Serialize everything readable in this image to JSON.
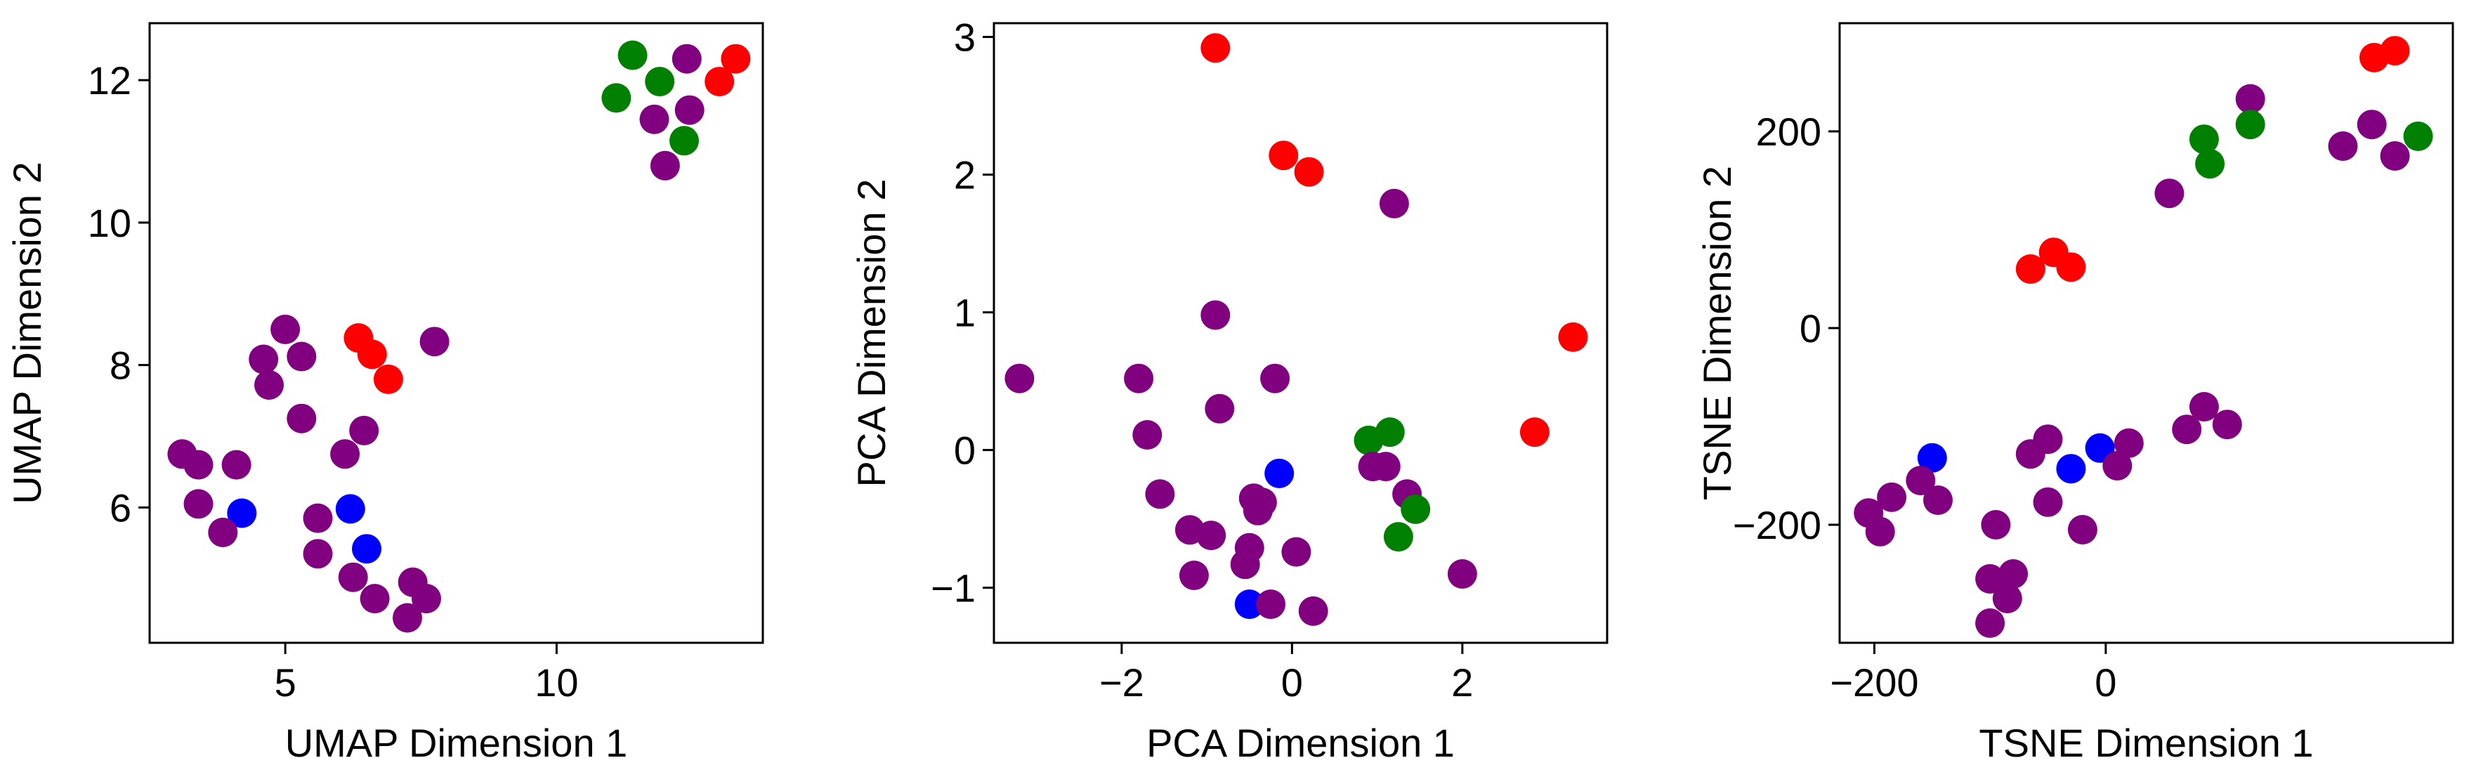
{
  "colors": {
    "purple": "#800080",
    "red": "#ff0000",
    "green": "#008000",
    "blue": "#0000ff"
  },
  "chart_data": [
    {
      "type": "scatter",
      "xlabel": "UMAP Dimension 1",
      "ylabel": "UMAP Dimension 2",
      "xlim": [
        2.5,
        13.8
      ],
      "ylim": [
        4.1,
        12.8
      ],
      "xticks": [
        5,
        10
      ],
      "yticks": [
        6,
        8,
        10,
        12
      ],
      "xtick_labels": [
        "5",
        "10"
      ],
      "ytick_labels": [
        "6",
        "8",
        "10",
        "12"
      ],
      "grid": false,
      "points": [
        {
          "x": 11.4,
          "y": 12.35,
          "color": "green"
        },
        {
          "x": 12.4,
          "y": 12.3,
          "color": "purple"
        },
        {
          "x": 13.3,
          "y": 12.3,
          "color": "red"
        },
        {
          "x": 11.9,
          "y": 11.98,
          "color": "green"
        },
        {
          "x": 13.0,
          "y": 11.98,
          "color": "red"
        },
        {
          "x": 11.1,
          "y": 11.75,
          "color": "green"
        },
        {
          "x": 12.45,
          "y": 11.58,
          "color": "purple"
        },
        {
          "x": 11.8,
          "y": 11.45,
          "color": "purple"
        },
        {
          "x": 12.35,
          "y": 11.15,
          "color": "green"
        },
        {
          "x": 12.0,
          "y": 10.8,
          "color": "purple"
        },
        {
          "x": 5.0,
          "y": 8.5,
          "color": "purple"
        },
        {
          "x": 6.35,
          "y": 8.38,
          "color": "red"
        },
        {
          "x": 7.75,
          "y": 8.33,
          "color": "purple"
        },
        {
          "x": 6.6,
          "y": 8.15,
          "color": "red"
        },
        {
          "x": 5.3,
          "y": 8.12,
          "color": "purple"
        },
        {
          "x": 4.6,
          "y": 8.08,
          "color": "purple"
        },
        {
          "x": 6.9,
          "y": 7.8,
          "color": "red"
        },
        {
          "x": 4.7,
          "y": 7.72,
          "color": "purple"
        },
        {
          "x": 5.3,
          "y": 7.25,
          "color": "purple"
        },
        {
          "x": 6.45,
          "y": 7.08,
          "color": "purple"
        },
        {
          "x": 3.1,
          "y": 6.75,
          "color": "purple"
        },
        {
          "x": 6.1,
          "y": 6.75,
          "color": "purple"
        },
        {
          "x": 3.4,
          "y": 6.6,
          "color": "purple"
        },
        {
          "x": 4.1,
          "y": 6.6,
          "color": "purple"
        },
        {
          "x": 3.4,
          "y": 6.05,
          "color": "purple"
        },
        {
          "x": 6.2,
          "y": 5.98,
          "color": "blue"
        },
        {
          "x": 4.2,
          "y": 5.92,
          "color": "blue"
        },
        {
          "x": 5.6,
          "y": 5.85,
          "color": "purple"
        },
        {
          "x": 3.85,
          "y": 5.65,
          "color": "purple"
        },
        {
          "x": 6.5,
          "y": 5.42,
          "color": "blue"
        },
        {
          "x": 5.6,
          "y": 5.35,
          "color": "purple"
        },
        {
          "x": 6.25,
          "y": 5.02,
          "color": "purple"
        },
        {
          "x": 7.35,
          "y": 4.95,
          "color": "purple"
        },
        {
          "x": 6.65,
          "y": 4.72,
          "color": "purple"
        },
        {
          "x": 7.6,
          "y": 4.72,
          "color": "purple"
        },
        {
          "x": 7.25,
          "y": 4.45,
          "color": "purple"
        }
      ]
    },
    {
      "type": "scatter",
      "xlabel": "PCA Dimension 1",
      "ylabel": "PCA Dimension 2",
      "xlim": [
        -3.5,
        3.7
      ],
      "ylim": [
        -1.4,
        3.1
      ],
      "xticks": [
        -2,
        0,
        2
      ],
      "yticks": [
        -1,
        0,
        1,
        2,
        3
      ],
      "xtick_labels": [
        "−2",
        "0",
        "2"
      ],
      "ytick_labels": [
        "−1",
        "0",
        "1",
        "2",
        "3"
      ],
      "grid": false,
      "points": [
        {
          "x": -0.9,
          "y": 2.92,
          "color": "red"
        },
        {
          "x": -0.1,
          "y": 2.14,
          "color": "red"
        },
        {
          "x": 0.2,
          "y": 2.02,
          "color": "red"
        },
        {
          "x": 1.2,
          "y": 1.79,
          "color": "purple"
        },
        {
          "x": -0.9,
          "y": 0.98,
          "color": "purple"
        },
        {
          "x": 3.3,
          "y": 0.82,
          "color": "red"
        },
        {
          "x": -3.2,
          "y": 0.52,
          "color": "purple"
        },
        {
          "x": -1.8,
          "y": 0.52,
          "color": "purple"
        },
        {
          "x": -0.2,
          "y": 0.52,
          "color": "purple"
        },
        {
          "x": -0.85,
          "y": 0.3,
          "color": "purple"
        },
        {
          "x": -1.7,
          "y": 0.11,
          "color": "purple"
        },
        {
          "x": 1.15,
          "y": 0.13,
          "color": "green"
        },
        {
          "x": 2.85,
          "y": 0.13,
          "color": "red"
        },
        {
          "x": 0.9,
          "y": 0.07,
          "color": "green"
        },
        {
          "x": 0.95,
          "y": -0.12,
          "color": "purple"
        },
        {
          "x": 1.1,
          "y": -0.12,
          "color": "purple"
        },
        {
          "x": -0.15,
          "y": -0.17,
          "color": "blue"
        },
        {
          "x": -1.55,
          "y": -0.32,
          "color": "purple"
        },
        {
          "x": 1.35,
          "y": -0.32,
          "color": "purple"
        },
        {
          "x": -0.45,
          "y": -0.35,
          "color": "purple"
        },
        {
          "x": -0.35,
          "y": -0.38,
          "color": "purple"
        },
        {
          "x": -0.4,
          "y": -0.44,
          "color": "purple"
        },
        {
          "x": 1.45,
          "y": -0.43,
          "color": "green"
        },
        {
          "x": -1.2,
          "y": -0.58,
          "color": "purple"
        },
        {
          "x": -0.95,
          "y": -0.62,
          "color": "purple"
        },
        {
          "x": 1.25,
          "y": -0.63,
          "color": "green"
        },
        {
          "x": -0.5,
          "y": -0.71,
          "color": "purple"
        },
        {
          "x": 0.05,
          "y": -0.74,
          "color": "purple"
        },
        {
          "x": -0.55,
          "y": -0.83,
          "color": "purple"
        },
        {
          "x": -1.15,
          "y": -0.91,
          "color": "purple"
        },
        {
          "x": 2.0,
          "y": -0.9,
          "color": "purple"
        },
        {
          "x": -0.5,
          "y": -1.12,
          "color": "blue"
        },
        {
          "x": -0.25,
          "y": -1.12,
          "color": "purple"
        },
        {
          "x": 0.25,
          "y": -1.17,
          "color": "purple"
        }
      ]
    },
    {
      "type": "scatter",
      "xlabel": "TSNE Dimension 1",
      "ylabel": "TSNE Dimension 2",
      "xlim": [
        -230,
        300
      ],
      "ylim": [
        -320,
        310
      ],
      "xticks": [
        -200,
        0
      ],
      "yticks": [
        -200,
        0,
        200
      ],
      "xtick_labels": [
        "−200",
        "0"
      ],
      "ytick_labels": [
        "−200",
        "0",
        "200"
      ],
      "grid": false,
      "points": [
        {
          "x": 250,
          "y": 282,
          "color": "red"
        },
        {
          "x": 232,
          "y": 275,
          "color": "red"
        },
        {
          "x": 125,
          "y": 233,
          "color": "purple"
        },
        {
          "x": 125,
          "y": 207,
          "color": "green"
        },
        {
          "x": 230,
          "y": 207,
          "color": "purple"
        },
        {
          "x": 270,
          "y": 195,
          "color": "green"
        },
        {
          "x": 85,
          "y": 192,
          "color": "green"
        },
        {
          "x": 205,
          "y": 185,
          "color": "purple"
        },
        {
          "x": 250,
          "y": 175,
          "color": "purple"
        },
        {
          "x": 90,
          "y": 167,
          "color": "green"
        },
        {
          "x": 55,
          "y": 137,
          "color": "purple"
        },
        {
          "x": -45,
          "y": 77,
          "color": "red"
        },
        {
          "x": -65,
          "y": 60,
          "color": "red"
        },
        {
          "x": -30,
          "y": 62,
          "color": "red"
        },
        {
          "x": 85,
          "y": -80,
          "color": "purple"
        },
        {
          "x": 105,
          "y": -98,
          "color": "purple"
        },
        {
          "x": 70,
          "y": -103,
          "color": "purple"
        },
        {
          "x": -50,
          "y": -113,
          "color": "purple"
        },
        {
          "x": 20,
          "y": -117,
          "color": "purple"
        },
        {
          "x": -5,
          "y": -122,
          "color": "blue"
        },
        {
          "x": -65,
          "y": -128,
          "color": "purple"
        },
        {
          "x": -150,
          "y": -132,
          "color": "blue"
        },
        {
          "x": -30,
          "y": -143,
          "color": "blue"
        },
        {
          "x": 10,
          "y": -140,
          "color": "purple"
        },
        {
          "x": -160,
          "y": -155,
          "color": "purple"
        },
        {
          "x": -185,
          "y": -172,
          "color": "purple"
        },
        {
          "x": -145,
          "y": -175,
          "color": "purple"
        },
        {
          "x": -50,
          "y": -177,
          "color": "purple"
        },
        {
          "x": -205,
          "y": -188,
          "color": "purple"
        },
        {
          "x": -95,
          "y": -200,
          "color": "purple"
        },
        {
          "x": -20,
          "y": -205,
          "color": "purple"
        },
        {
          "x": -195,
          "y": -207,
          "color": "purple"
        },
        {
          "x": -80,
          "y": -250,
          "color": "purple"
        },
        {
          "x": -100,
          "y": -255,
          "color": "purple"
        },
        {
          "x": -85,
          "y": -275,
          "color": "purple"
        },
        {
          "x": -100,
          "y": -300,
          "color": "purple"
        }
      ]
    }
  ]
}
